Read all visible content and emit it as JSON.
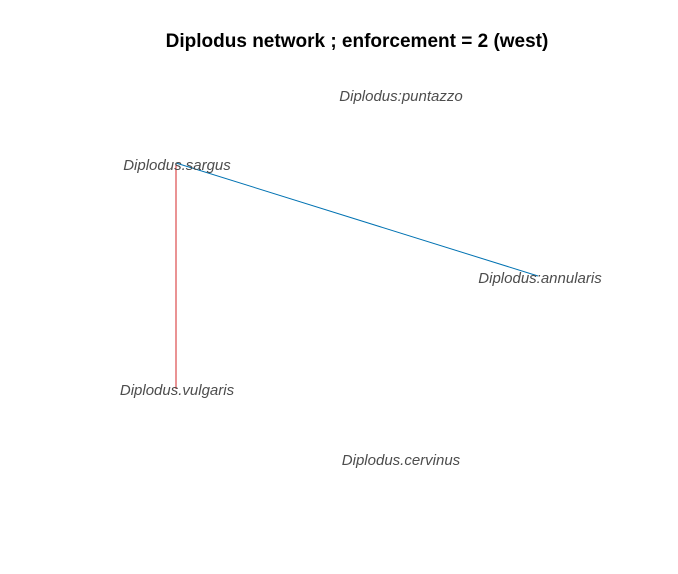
{
  "title": "Diplodus network ; enforcement = 2 (west)",
  "nodes": [
    {
      "id": "puntazzo",
      "label": "Diplodus:puntazzo"
    },
    {
      "id": "sargus",
      "label": "Diplodus.sargus"
    },
    {
      "id": "annularis",
      "label": "Diplodus:annularis"
    },
    {
      "id": "vulgaris",
      "label": "Diplodus.vulgaris"
    },
    {
      "id": "cervinus",
      "label": "Diplodus.cervinus"
    }
  ],
  "edges": [
    {
      "from": "sargus",
      "to": "annularis",
      "color": "#0072b2"
    },
    {
      "from": "sargus",
      "to": "vulgaris",
      "color": "#d62728"
    }
  ]
}
